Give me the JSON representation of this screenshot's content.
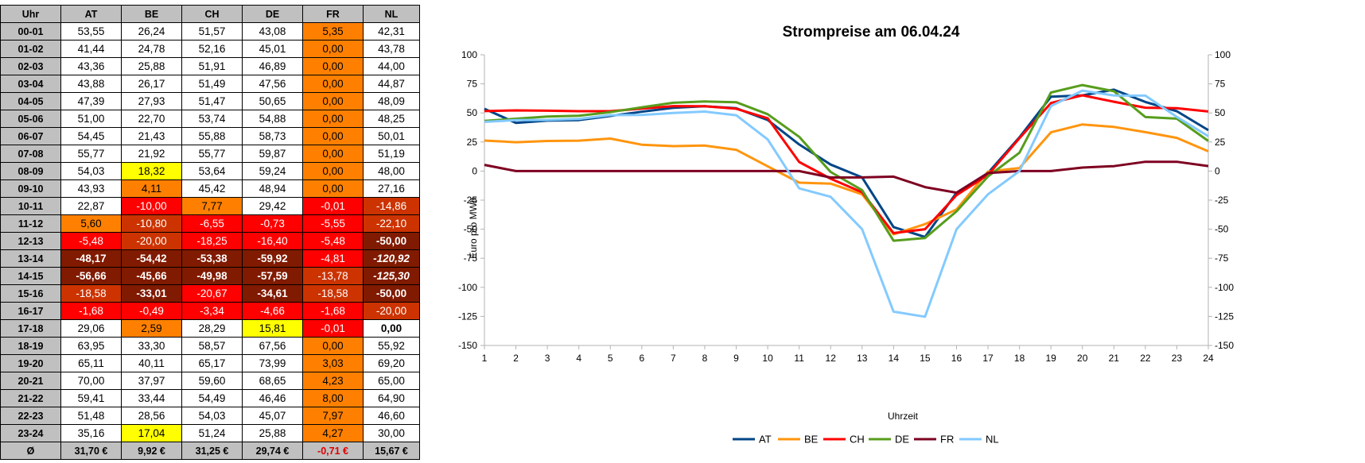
{
  "table": {
    "columns": [
      "Uhr",
      "AT",
      "BE",
      "CH",
      "DE",
      "FR",
      "NL"
    ],
    "rows": [
      {
        "uhr": "00-01",
        "cells": [
          {
            "v": "53,55"
          },
          {
            "v": "26,24"
          },
          {
            "v": "51,57"
          },
          {
            "v": "43,08"
          },
          {
            "v": "5,35",
            "bg": "orange"
          },
          {
            "v": "42,31"
          }
        ]
      },
      {
        "uhr": "01-02",
        "cells": [
          {
            "v": "41,44"
          },
          {
            "v": "24,78"
          },
          {
            "v": "52,16"
          },
          {
            "v": "45,01"
          },
          {
            "v": "0,00",
            "bg": "orange"
          },
          {
            "v": "43,78"
          }
        ]
      },
      {
        "uhr": "02-03",
        "cells": [
          {
            "v": "43,36"
          },
          {
            "v": "25,88"
          },
          {
            "v": "51,91"
          },
          {
            "v": "46,89"
          },
          {
            "v": "0,00",
            "bg": "orange"
          },
          {
            "v": "44,00"
          }
        ]
      },
      {
        "uhr": "03-04",
        "cells": [
          {
            "v": "43,88"
          },
          {
            "v": "26,17"
          },
          {
            "v": "51,49"
          },
          {
            "v": "47,56"
          },
          {
            "v": "0,00",
            "bg": "orange"
          },
          {
            "v": "44,87"
          }
        ]
      },
      {
        "uhr": "04-05",
        "cells": [
          {
            "v": "47,39"
          },
          {
            "v": "27,93"
          },
          {
            "v": "51,47"
          },
          {
            "v": "50,65"
          },
          {
            "v": "0,00",
            "bg": "orange"
          },
          {
            "v": "48,09"
          }
        ]
      },
      {
        "uhr": "05-06",
        "cells": [
          {
            "v": "51,00"
          },
          {
            "v": "22,70"
          },
          {
            "v": "53,74"
          },
          {
            "v": "54,88"
          },
          {
            "v": "0,00",
            "bg": "orange"
          },
          {
            "v": "48,25"
          }
        ]
      },
      {
        "uhr": "06-07",
        "cells": [
          {
            "v": "54,45"
          },
          {
            "v": "21,43"
          },
          {
            "v": "55,88"
          },
          {
            "v": "58,73"
          },
          {
            "v": "0,00",
            "bg": "orange"
          },
          {
            "v": "50,01"
          }
        ]
      },
      {
        "uhr": "07-08",
        "cells": [
          {
            "v": "55,77"
          },
          {
            "v": "21,92"
          },
          {
            "v": "55,77"
          },
          {
            "v": "59,87"
          },
          {
            "v": "0,00",
            "bg": "orange"
          },
          {
            "v": "51,19"
          }
        ]
      },
      {
        "uhr": "08-09",
        "cells": [
          {
            "v": "54,03"
          },
          {
            "v": "18,32",
            "bg": "yellow"
          },
          {
            "v": "53,64"
          },
          {
            "v": "59,24"
          },
          {
            "v": "0,00",
            "bg": "orange"
          },
          {
            "v": "48,00"
          }
        ]
      },
      {
        "uhr": "09-10",
        "cells": [
          {
            "v": "43,93"
          },
          {
            "v": "4,11",
            "bg": "orange"
          },
          {
            "v": "45,42"
          },
          {
            "v": "48,94"
          },
          {
            "v": "0,00",
            "bg": "orange"
          },
          {
            "v": "27,16"
          }
        ]
      },
      {
        "uhr": "10-11",
        "cells": [
          {
            "v": "22,87"
          },
          {
            "v": "-10,00",
            "bg": "red"
          },
          {
            "v": "7,77",
            "bg": "orange"
          },
          {
            "v": "29,42"
          },
          {
            "v": "-0,01",
            "bg": "red"
          },
          {
            "v": "-14,86",
            "bg": "darkred"
          }
        ]
      },
      {
        "uhr": "11-12",
        "cells": [
          {
            "v": "5,60",
            "bg": "orange"
          },
          {
            "v": "-10,80",
            "bg": "darkred"
          },
          {
            "v": "-6,55",
            "bg": "red"
          },
          {
            "v": "-0,73",
            "bg": "red"
          },
          {
            "v": "-5,55",
            "bg": "red"
          },
          {
            "v": "-22,10",
            "bg": "darkred"
          }
        ]
      },
      {
        "uhr": "12-13",
        "cells": [
          {
            "v": "-5,48",
            "bg": "red"
          },
          {
            "v": "-20,00",
            "bg": "darkred"
          },
          {
            "v": "-18,25",
            "bg": "red"
          },
          {
            "v": "-16,40",
            "bg": "red"
          },
          {
            "v": "-5,48",
            "bg": "red"
          },
          {
            "v": "-50,00",
            "bg": "brown"
          }
        ]
      },
      {
        "uhr": "13-14",
        "cells": [
          {
            "v": "-48,17",
            "bg": "brown"
          },
          {
            "v": "-54,42",
            "bg": "brown"
          },
          {
            "v": "-53,38",
            "bg": "brown"
          },
          {
            "v": "-59,92",
            "bg": "brown"
          },
          {
            "v": "-4,81",
            "bg": "red"
          },
          {
            "v": "-120,92",
            "bg": "brown",
            "italic": true
          }
        ]
      },
      {
        "uhr": "14-15",
        "cells": [
          {
            "v": "-56,66",
            "bg": "brown"
          },
          {
            "v": "-45,66",
            "bg": "brown"
          },
          {
            "v": "-49,98",
            "bg": "brown"
          },
          {
            "v": "-57,59",
            "bg": "brown"
          },
          {
            "v": "-13,78",
            "bg": "darkred"
          },
          {
            "v": "-125,30",
            "bg": "brown",
            "italic": true
          }
        ]
      },
      {
        "uhr": "15-16",
        "cells": [
          {
            "v": "-18,58",
            "bg": "darkred"
          },
          {
            "v": "-33,01",
            "bg": "brown"
          },
          {
            "v": "-20,67",
            "bg": "red"
          },
          {
            "v": "-34,61",
            "bg": "brown"
          },
          {
            "v": "-18,58",
            "bg": "darkred"
          },
          {
            "v": "-50,00",
            "bg": "brown"
          }
        ]
      },
      {
        "uhr": "16-17",
        "cells": [
          {
            "v": "-1,68",
            "bg": "red"
          },
          {
            "v": "-0,49",
            "bg": "red"
          },
          {
            "v": "-3,34",
            "bg": "red"
          },
          {
            "v": "-4,66",
            "bg": "red"
          },
          {
            "v": "-1,68",
            "bg": "red"
          },
          {
            "v": "-20,00",
            "bg": "darkred"
          }
        ]
      },
      {
        "uhr": "17-18",
        "cells": [
          {
            "v": "29,06"
          },
          {
            "v": "2,59",
            "bg": "orange"
          },
          {
            "v": "28,29"
          },
          {
            "v": "15,81",
            "bg": "yellow"
          },
          {
            "v": "-0,01",
            "bg": "red"
          },
          {
            "v": "0,00",
            "small": true
          }
        ]
      },
      {
        "uhr": "18-19",
        "cells": [
          {
            "v": "63,95"
          },
          {
            "v": "33,30"
          },
          {
            "v": "58,57"
          },
          {
            "v": "67,56"
          },
          {
            "v": "0,00",
            "bg": "orange"
          },
          {
            "v": "55,92"
          }
        ]
      },
      {
        "uhr": "19-20",
        "cells": [
          {
            "v": "65,11"
          },
          {
            "v": "40,11"
          },
          {
            "v": "65,17"
          },
          {
            "v": "73,99"
          },
          {
            "v": "3,03",
            "bg": "orange"
          },
          {
            "v": "69,20"
          }
        ]
      },
      {
        "uhr": "20-21",
        "cells": [
          {
            "v": "70,00"
          },
          {
            "v": "37,97"
          },
          {
            "v": "59,60"
          },
          {
            "v": "68,65"
          },
          {
            "v": "4,23",
            "bg": "orange"
          },
          {
            "v": "65,00"
          }
        ]
      },
      {
        "uhr": "21-22",
        "cells": [
          {
            "v": "59,41"
          },
          {
            "v": "33,44"
          },
          {
            "v": "54,49"
          },
          {
            "v": "46,46"
          },
          {
            "v": "8,00",
            "bg": "orange"
          },
          {
            "v": "64,90"
          }
        ]
      },
      {
        "uhr": "22-23",
        "cells": [
          {
            "v": "51,48"
          },
          {
            "v": "28,56"
          },
          {
            "v": "54,03"
          },
          {
            "v": "45,07"
          },
          {
            "v": "7,97",
            "bg": "orange"
          },
          {
            "v": "46,60"
          }
        ]
      },
      {
        "uhr": "23-24",
        "cells": [
          {
            "v": "35,16"
          },
          {
            "v": "17,04",
            "bg": "yellow"
          },
          {
            "v": "51,24"
          },
          {
            "v": "25,88"
          },
          {
            "v": "4,27",
            "bg": "orange"
          },
          {
            "v": "30,00"
          }
        ]
      }
    ],
    "avg_label": "Ø",
    "averages": [
      {
        "v": "31,70 €"
      },
      {
        "v": "9,92 €"
      },
      {
        "v": "31,25 €"
      },
      {
        "v": "29,74 €"
      },
      {
        "v": "-0,71 €",
        "neg": true
      },
      {
        "v": "15,67 €"
      }
    ]
  },
  "chart_data": {
    "type": "line",
    "title": "Strompreise am 06.04.24",
    "xlabel": "Uhrzeit",
    "ylabel": "Euro pro MWh",
    "x": [
      1,
      2,
      3,
      4,
      5,
      6,
      7,
      8,
      9,
      10,
      11,
      12,
      13,
      14,
      15,
      16,
      17,
      18,
      19,
      20,
      21,
      22,
      23,
      24
    ],
    "ylim": [
      -150,
      100
    ],
    "ytick_step": 25,
    "yticks_right": true,
    "grid": false,
    "legend": "bottom",
    "series": [
      {
        "name": "AT",
        "color": "#004586",
        "values": [
          53.55,
          41.44,
          43.36,
          43.88,
          47.39,
          51.0,
          54.45,
          55.77,
          54.03,
          43.93,
          22.87,
          5.6,
          -5.48,
          -48.17,
          -56.66,
          -18.58,
          -1.68,
          29.06,
          63.95,
          65.11,
          70.0,
          59.41,
          51.48,
          35.16
        ]
      },
      {
        "name": "BE",
        "color": "#ff950e",
        "values": [
          26.24,
          24.78,
          25.88,
          26.17,
          27.93,
          22.7,
          21.43,
          21.92,
          18.32,
          4.11,
          -10.0,
          -10.8,
          -20.0,
          -54.42,
          -45.66,
          -33.01,
          -0.49,
          2.59,
          33.3,
          40.11,
          37.97,
          33.44,
          28.56,
          17.04
        ]
      },
      {
        "name": "CH",
        "color": "#ff0000",
        "values": [
          51.57,
          52.16,
          51.91,
          51.49,
          51.47,
          53.74,
          55.88,
          55.77,
          53.64,
          45.42,
          7.77,
          -6.55,
          -18.25,
          -53.38,
          -49.98,
          -20.67,
          -3.34,
          28.29,
          58.57,
          65.17,
          59.6,
          54.49,
          54.03,
          51.24
        ]
      },
      {
        "name": "DE",
        "color": "#579d1c",
        "values": [
          43.08,
          45.01,
          46.89,
          47.56,
          50.65,
          54.88,
          58.73,
          59.87,
          59.24,
          48.94,
          29.42,
          -0.73,
          -16.4,
          -59.92,
          -57.59,
          -34.61,
          -4.66,
          15.81,
          67.56,
          73.99,
          68.65,
          46.46,
          45.07,
          25.88
        ]
      },
      {
        "name": "FR",
        "color": "#7e0021",
        "values": [
          5.35,
          0.0,
          0.0,
          0.0,
          0.0,
          0.0,
          0.0,
          0.0,
          0.0,
          0.0,
          -0.01,
          -5.55,
          -5.48,
          -4.81,
          -13.78,
          -18.58,
          -1.68,
          -0.01,
          0.0,
          3.03,
          4.23,
          8.0,
          7.97,
          4.27
        ]
      },
      {
        "name": "NL",
        "color": "#83caff",
        "values": [
          42.31,
          43.78,
          44.0,
          44.87,
          48.09,
          48.25,
          50.01,
          51.19,
          48.0,
          27.16,
          -14.86,
          -22.1,
          -50.0,
          -120.92,
          -125.3,
          -50.0,
          -20.0,
          0.0,
          55.92,
          69.2,
          65.0,
          64.9,
          46.6,
          30.0
        ]
      }
    ]
  }
}
